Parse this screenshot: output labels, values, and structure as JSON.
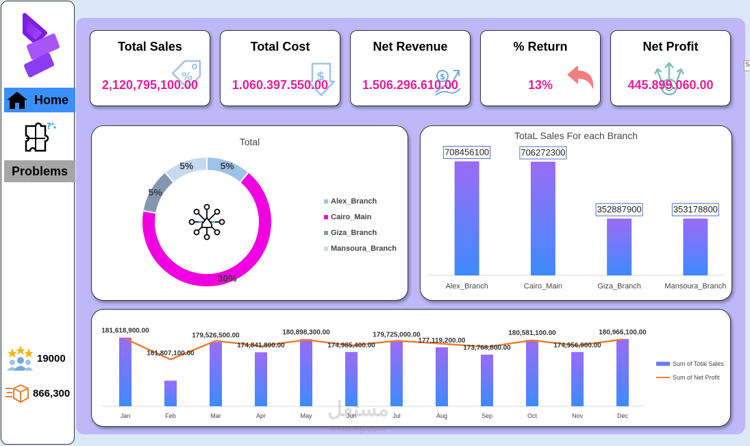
{
  "sidebar": {
    "nav": {
      "home_label": "Home",
      "problems_label": "Problems"
    },
    "stats": [
      {
        "icon": "stars-users-icon",
        "value": "19000"
      },
      {
        "icon": "delivery-box-icon",
        "value": "866,300"
      }
    ]
  },
  "kpis": [
    {
      "title": "Total Sales",
      "value": "2,120,795,100.00",
      "icon": "price-tag-percent-icon"
    },
    {
      "title": "Total Cost",
      "value": "1.060.397.550.00",
      "icon": "dollar-down-arrow-icon"
    },
    {
      "title": "Net Revenue",
      "value": "1.506.296.610.00",
      "icon": "money-growth-icon"
    },
    {
      "title": "% Return",
      "value": "13%",
      "icon": "return-arrow-icon"
    },
    {
      "title": "Net Profit",
      "value": "445.899.060.00",
      "icon": "profit-growth-icon"
    }
  ],
  "edge_tab": {
    "label": "Sa"
  },
  "watermark": {
    "text": "مستقل",
    "subtext": "mostaql.com"
  },
  "colors": {
    "accent_pink": "#e91e9a",
    "bar_blue": "#3d8bff",
    "bar_violet": "#9b6cf5",
    "line_orange": "#ed7d31",
    "home_blue": "#3b8ff8",
    "panel_bg": "#c0b7f8"
  },
  "chart_data": [
    {
      "type": "pie",
      "title": "Total",
      "categories": [
        "Alex_Branch",
        "Cairo_Main",
        "Giza_Branch",
        "Mansoura_Branch"
      ],
      "values": [
        5,
        30,
        5,
        5
      ],
      "labels": [
        "5%",
        "30%",
        "5%",
        "5%"
      ],
      "colors": [
        "#9dc3e6",
        "#f000e0",
        "#8497b0",
        "#c5d9f1"
      ],
      "legend": "right"
    },
    {
      "type": "bar",
      "title": "TotaL Sales For each Branch",
      "categories": [
        "Alex_Branch",
        "Cairo_Main",
        "Giza_Branch",
        "Mansoura_Branch"
      ],
      "values": [
        708456100,
        706272300,
        352887900,
        353178800
      ],
      "data_labels": [
        "708456100",
        "706272300",
        "352887900",
        "353178800"
      ],
      "ylim": [
        0,
        800000000
      ]
    },
    {
      "type": "bar",
      "categories": [
        "Jan",
        "Feb",
        "Mar",
        "Apr",
        "May",
        "Jun",
        "Jul",
        "Aug",
        "Sep",
        "Oct",
        "Nov",
        "Dec"
      ],
      "series": [
        {
          "name": "Sum of Total Sales",
          "type": "bar",
          "values": [
            181618900,
            161807100,
            179526500,
            174841800,
            180898300,
            174985400,
            179725000,
            177119200,
            173768800,
            180581100,
            174956900,
            180966100
          ]
        },
        {
          "name": "Sum of Net  Profit",
          "type": "line",
          "values": [
            38200000,
            33900000,
            37800000,
            36700000,
            38000000,
            36800000,
            37800000,
            37200000,
            36500000,
            37900000,
            36800000,
            38100000
          ]
        }
      ],
      "data_labels": [
        "181,618,900.00",
        "161,807,100.00",
        "179,526,500.00",
        "174,841,800.00",
        "180,898,300.00",
        "174,985,400.00",
        "179,725,000.00",
        "177,119,200.00",
        "173,768,800.00",
        "180,581,100.00",
        "174,956,900.00",
        "180,966,100.00"
      ],
      "ylim": [
        150000000,
        185000000
      ],
      "legend": "right"
    }
  ]
}
